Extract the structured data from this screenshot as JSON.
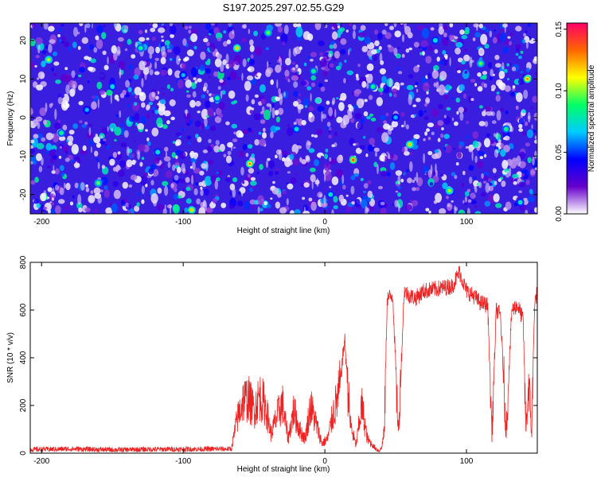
{
  "title": "S197.2025.297.02.55.G29",
  "chart_data": [
    {
      "type": "heatmap",
      "xlabel": "Height of straight line (km)",
      "ylabel": "Frequency (Hz)",
      "xlim": [
        -208,
        150
      ],
      "ylim": [
        -25,
        24.5
      ],
      "xticks": [
        -200,
        -100,
        0,
        100
      ],
      "yticks": [
        -20,
        -10,
        0,
        10,
        20
      ],
      "x_tick_labels": [
        "-200",
        "-100",
        "0",
        "100"
      ],
      "y_tick_labels": [
        "-20",
        "-10",
        "0",
        "10",
        "20"
      ],
      "colorbar": {
        "label": "Normalized spectral amplitude",
        "range": [
          0.0,
          0.155
        ],
        "ticks": [
          "0.00",
          "0.05",
          "0.10",
          "0.15"
        ],
        "tick_values": [
          0.0,
          0.05,
          0.1,
          0.15
        ],
        "colormap": [
          "#ffffff",
          "#6600cc",
          "#0000ff",
          "#00ccff",
          "#00ff66",
          "#ffff00",
          "#ff6600",
          "#ff0066"
        ]
      },
      "hotspots": [
        {
          "x": -195,
          "y": 15,
          "v": 0.11
        },
        {
          "x": -186,
          "y": -4,
          "v": 0.09
        },
        {
          "x": -168,
          "y": 2,
          "v": 0.07
        },
        {
          "x": -160,
          "y": -17,
          "v": 0.1
        },
        {
          "x": -150,
          "y": 8,
          "v": 0.08
        },
        {
          "x": -130,
          "y": 18,
          "v": 0.09
        },
        {
          "x": -118,
          "y": -9,
          "v": 0.08
        },
        {
          "x": -100,
          "y": 11,
          "v": 0.07
        },
        {
          "x": -94,
          "y": -24,
          "v": 0.12
        },
        {
          "x": -76,
          "y": 5,
          "v": 0.09
        },
        {
          "x": -62,
          "y": 18,
          "v": 0.12
        },
        {
          "x": -53,
          "y": -12,
          "v": 0.13
        },
        {
          "x": -40,
          "y": 22,
          "v": 0.1
        },
        {
          "x": -20,
          "y": -3,
          "v": 0.08
        },
        {
          "x": -8,
          "y": 12,
          "v": 0.09
        },
        {
          "x": 4,
          "y": -20,
          "v": 0.08
        },
        {
          "x": 20,
          "y": -11,
          "v": 0.14
        },
        {
          "x": 34,
          "y": 8,
          "v": 0.09
        },
        {
          "x": 50,
          "y": 0,
          "v": 0.07
        },
        {
          "x": 60,
          "y": -7,
          "v": 0.12
        },
        {
          "x": 78,
          "y": 20,
          "v": 0.08
        },
        {
          "x": 88,
          "y": -19,
          "v": 0.11
        },
        {
          "x": 110,
          "y": 14,
          "v": 0.1
        },
        {
          "x": 128,
          "y": -3,
          "v": 0.09
        },
        {
          "x": 143,
          "y": 10,
          "v": 0.13
        },
        {
          "x": 138,
          "y": -22,
          "v": 0.08
        }
      ]
    },
    {
      "type": "line",
      "xlabel": "Height of straight line (km)",
      "ylabel": "SNR (10 * v/v)",
      "xlim": [
        -208,
        150
      ],
      "ylim": [
        0,
        800
      ],
      "xticks": [
        -200,
        -100,
        0,
        100
      ],
      "yticks": [
        0,
        200,
        400,
        600,
        800
      ],
      "x_tick_labels": [
        "-200",
        "-100",
        "0",
        "100"
      ],
      "y_tick_labels": [
        "0",
        "200",
        "400",
        "600",
        "800"
      ],
      "color": "#ee2222",
      "series": [
        {
          "x": [
            -208,
            -180,
            -150,
            -120,
            -90,
            -66,
            -62,
            -58,
            -54,
            -50,
            -46,
            -42,
            -38,
            -34,
            -30,
            -26,
            -22,
            -18,
            -14,
            -10,
            -6,
            -2,
            2,
            6,
            10,
            14,
            18,
            22,
            26,
            30,
            34,
            38,
            40,
            42,
            44,
            48,
            52,
            56,
            60,
            64,
            70,
            80,
            90,
            95,
            100,
            105,
            110,
            115,
            118,
            121,
            124,
            128,
            132,
            136,
            140,
            142,
            144,
            146,
            148,
            150
          ],
          "y": [
            15,
            18,
            14,
            16,
            17,
            18,
            140,
            220,
            230,
            180,
            240,
            200,
            80,
            150,
            210,
            60,
            180,
            100,
            60,
            200,
            120,
            40,
            60,
            170,
            250,
            480,
            120,
            30,
            200,
            60,
            30,
            10,
            20,
            90,
            650,
            660,
            80,
            680,
            660,
            650,
            680,
            690,
            700,
            760,
            680,
            660,
            630,
            620,
            80,
            600,
            580,
            90,
            600,
            620,
            560,
            100,
            300,
            80,
            620,
            680
          ]
        }
      ]
    }
  ]
}
